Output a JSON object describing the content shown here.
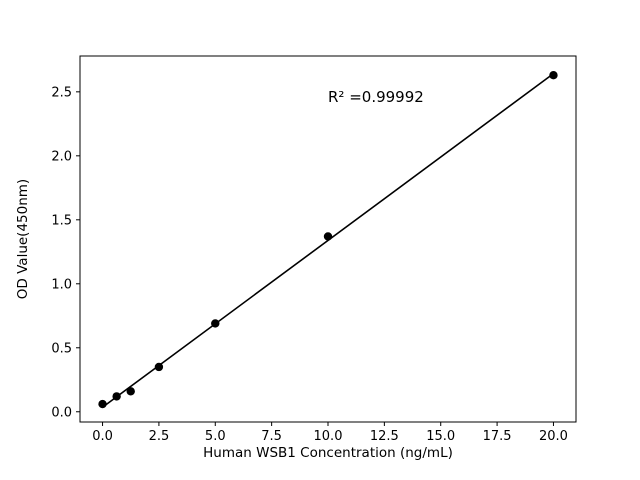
{
  "chart_data": {
    "type": "scatter",
    "title": "",
    "xlabel": "Human WSB1 Concentration (ng/mL)",
    "ylabel": "OD Value(450nm)",
    "x": [
      0,
      0.625,
      1.25,
      2.5,
      5,
      10,
      20
    ],
    "y": [
      0.06,
      0.12,
      0.16,
      0.35,
      0.69,
      1.37,
      2.63
    ],
    "xlim": [
      -1,
      21
    ],
    "ylim": [
      -0.08,
      2.78
    ],
    "xticks": [
      0.0,
      2.5,
      5.0,
      7.5,
      10.0,
      12.5,
      15.0,
      17.5,
      20.0
    ],
    "yticks": [
      0.0,
      0.5,
      1.0,
      1.5,
      2.0,
      2.5
    ],
    "grid": false,
    "legend": null,
    "line_color": "#000000",
    "marker_color": "#000000",
    "annotation": {
      "text": "R² =0.99992",
      "x": 10.0,
      "y": 2.42
    }
  }
}
